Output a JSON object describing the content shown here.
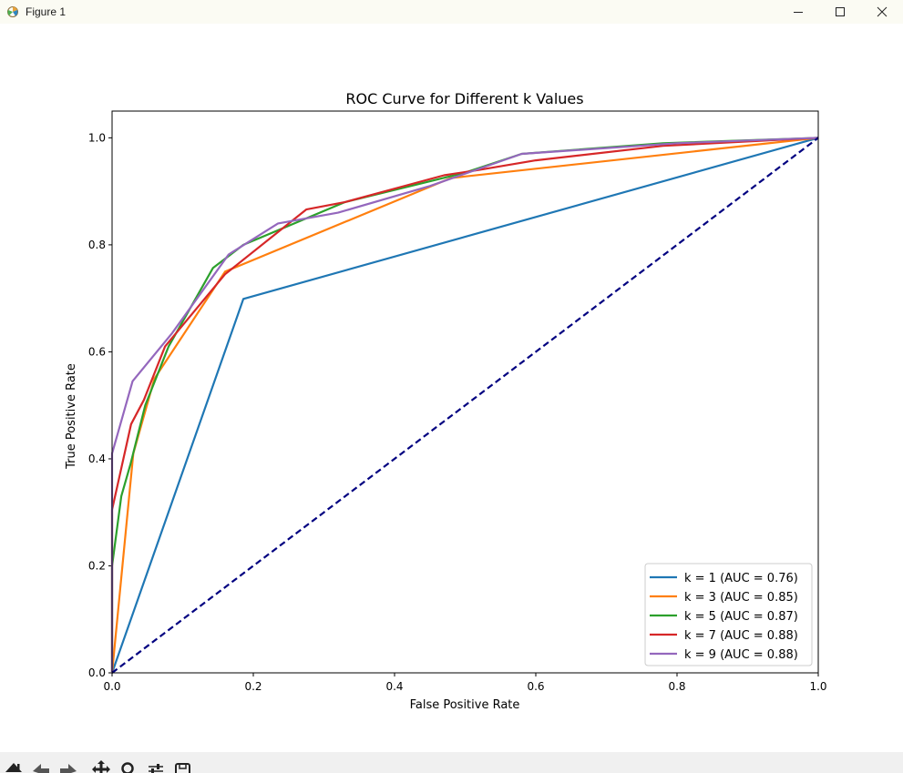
{
  "window": {
    "title": "Figure 1",
    "icons": [
      "matplotlib-icon",
      "minimize-icon",
      "maximize-icon",
      "close-icon"
    ]
  },
  "toolbar": {
    "icons": [
      "home-icon",
      "back-icon",
      "forward-icon",
      "pan-icon",
      "zoom-icon",
      "configure-subplots-icon",
      "save-icon"
    ]
  },
  "chart_data": {
    "type": "line",
    "title": "ROC Curve for Different k Values",
    "xlabel": "False Positive Rate",
    "ylabel": "True Positive Rate",
    "xlim": [
      0.0,
      1.0
    ],
    "ylim": [
      0.0,
      1.05
    ],
    "xticks": [
      "0.0",
      "0.2",
      "0.4",
      "0.6",
      "0.8",
      "1.0"
    ],
    "yticks": [
      "0.0",
      "0.2",
      "0.4",
      "0.6",
      "0.8",
      "1.0"
    ],
    "grid": false,
    "legend_position": "lower-right",
    "series": [
      {
        "name": "k = 1 (AUC = 0.76)",
        "color": "#1f77b4",
        "x": [
          0.0,
          0.186,
          1.0
        ],
        "y": [
          0.0,
          0.699,
          1.0
        ]
      },
      {
        "name": "k = 3 (AUC = 0.85)",
        "color": "#ff7f0e",
        "x": [
          0.0,
          0.03,
          0.06,
          0.16,
          0.48,
          1.0
        ],
        "y": [
          0.0,
          0.41,
          0.55,
          0.75,
          0.925,
          1.0
        ]
      },
      {
        "name": "k = 5 (AUC = 0.87)",
        "color": "#2ca02c",
        "x": [
          0.0,
          0.0,
          0.013,
          0.026,
          0.047,
          0.08,
          0.143,
          0.186,
          0.33,
          0.5,
          0.58,
          0.78,
          1.0
        ],
        "y": [
          0.0,
          0.2,
          0.33,
          0.39,
          0.5,
          0.61,
          0.757,
          0.8,
          0.88,
          0.935,
          0.97,
          0.99,
          1.0
        ]
      },
      {
        "name": "k = 7 (AUC = 0.88)",
        "color": "#d62728",
        "x": [
          0.0,
          0.0,
          0.027,
          0.045,
          0.075,
          0.16,
          0.275,
          0.33,
          0.47,
          0.52,
          0.6,
          0.78,
          1.0
        ],
        "y": [
          0.0,
          0.305,
          0.465,
          0.51,
          0.61,
          0.745,
          0.866,
          0.88,
          0.93,
          0.94,
          0.958,
          0.985,
          1.0
        ]
      },
      {
        "name": "k = 9 (AUC = 0.88)",
        "color": "#9467bd",
        "x": [
          0.0,
          0.0,
          0.029,
          0.085,
          0.165,
          0.235,
          0.32,
          0.45,
          0.58,
          0.8,
          1.0
        ],
        "y": [
          0.0,
          0.41,
          0.545,
          0.635,
          0.782,
          0.84,
          0.86,
          0.91,
          0.97,
          0.99,
          1.0
        ]
      }
    ],
    "reference_line": {
      "color": "#000080",
      "style": "dashed",
      "x": [
        0.0,
        1.0
      ],
      "y": [
        0.0,
        1.0
      ]
    }
  }
}
